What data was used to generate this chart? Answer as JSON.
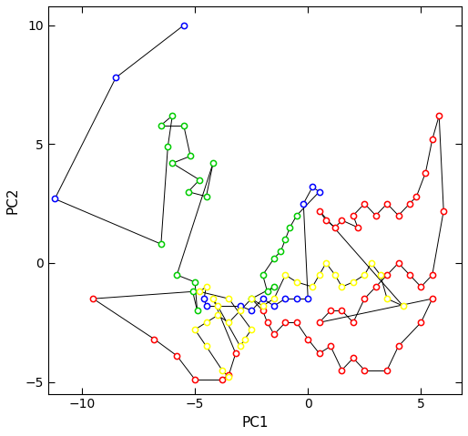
{
  "xlabel": "PC1",
  "ylabel": "PC2",
  "xlim": [
    -11.5,
    6.8
  ],
  "ylim": [
    -5.5,
    10.8
  ],
  "xticks": [
    -10,
    -5,
    0,
    5
  ],
  "yticks": [
    -5,
    0,
    5,
    10
  ],
  "color_map": {
    "red": "#FF0000",
    "green": "#00CC00",
    "blue": "#0000FF",
    "yellow": "#FFFF00"
  },
  "pts": [
    [
      -5.5,
      10.0,
      "blue"
    ],
    [
      -8.5,
      7.8,
      "blue"
    ],
    [
      -11.2,
      2.7,
      "blue"
    ],
    [
      -6.5,
      0.8,
      "green"
    ],
    [
      -6.2,
      4.9,
      "green"
    ],
    [
      -6.0,
      6.2,
      "green"
    ],
    [
      -6.5,
      5.8,
      "green"
    ],
    [
      -5.5,
      5.8,
      "green"
    ],
    [
      -5.2,
      4.5,
      "green"
    ],
    [
      -6.0,
      4.2,
      "green"
    ],
    [
      -4.8,
      3.5,
      "green"
    ],
    [
      -5.3,
      3.0,
      "green"
    ],
    [
      -4.5,
      2.8,
      "green"
    ],
    [
      -4.2,
      4.2,
      "green"
    ],
    [
      -5.8,
      -0.5,
      "green"
    ],
    [
      -5.0,
      -0.8,
      "green"
    ],
    [
      -4.9,
      -2.0,
      "green"
    ],
    [
      -5.1,
      -1.2,
      "green"
    ],
    [
      -9.5,
      -1.5,
      "red"
    ],
    [
      -6.8,
      -3.2,
      "red"
    ],
    [
      -5.8,
      -3.9,
      "red"
    ],
    [
      -5.0,
      -4.9,
      "red"
    ],
    [
      -3.8,
      -4.9,
      "red"
    ],
    [
      -3.5,
      -4.7,
      "red"
    ],
    [
      -3.2,
      -3.8,
      "red"
    ],
    [
      -4.2,
      -1.5,
      "yellow"
    ],
    [
      -4.0,
      -1.8,
      "yellow"
    ],
    [
      -3.0,
      -3.5,
      "yellow"
    ],
    [
      -2.8,
      -3.2,
      "yellow"
    ],
    [
      -2.5,
      -2.8,
      "yellow"
    ],
    [
      -3.5,
      -1.5,
      "yellow"
    ],
    [
      -4.8,
      -1.2,
      "yellow"
    ],
    [
      -4.5,
      -1.0,
      "yellow"
    ],
    [
      -4.6,
      -1.5,
      "blue"
    ],
    [
      -4.5,
      -1.8,
      "blue"
    ],
    [
      -3.0,
      -1.8,
      "blue"
    ],
    [
      -2.5,
      -2.0,
      "blue"
    ],
    [
      -2.0,
      -1.5,
      "blue"
    ],
    [
      -1.5,
      -1.8,
      "blue"
    ],
    [
      -1.0,
      -1.5,
      "blue"
    ],
    [
      -0.5,
      -1.5,
      "blue"
    ],
    [
      0.0,
      -1.5,
      "blue"
    ],
    [
      -0.2,
      2.5,
      "blue"
    ],
    [
      0.2,
      3.2,
      "blue"
    ],
    [
      0.5,
      3.0,
      "blue"
    ],
    [
      -0.5,
      2.0,
      "green"
    ],
    [
      -0.8,
      1.5,
      "green"
    ],
    [
      -1.0,
      1.0,
      "green"
    ],
    [
      -1.2,
      0.5,
      "green"
    ],
    [
      -1.5,
      0.2,
      "green"
    ],
    [
      -2.0,
      -0.5,
      "green"
    ],
    [
      -1.8,
      -1.2,
      "green"
    ],
    [
      -1.5,
      -1.0,
      "green"
    ],
    [
      -2.5,
      -1.5,
      "green"
    ],
    [
      -2.0,
      -2.0,
      "red"
    ],
    [
      -1.8,
      -2.5,
      "red"
    ],
    [
      -1.5,
      -3.0,
      "red"
    ],
    [
      -1.0,
      -2.5,
      "red"
    ],
    [
      -0.5,
      -2.5,
      "red"
    ],
    [
      0.0,
      -3.2,
      "red"
    ],
    [
      0.5,
      -3.8,
      "red"
    ],
    [
      1.0,
      -3.5,
      "red"
    ],
    [
      1.5,
      -4.5,
      "red"
    ],
    [
      2.0,
      -4.0,
      "red"
    ],
    [
      2.5,
      -4.5,
      "red"
    ],
    [
      3.5,
      -4.5,
      "red"
    ],
    [
      4.0,
      -3.5,
      "red"
    ],
    [
      5.0,
      -2.5,
      "red"
    ],
    [
      5.5,
      -1.5,
      "red"
    ],
    [
      0.5,
      -2.5,
      "red"
    ],
    [
      1.0,
      -2.0,
      "red"
    ],
    [
      1.5,
      -2.0,
      "red"
    ],
    [
      2.0,
      -2.5,
      "red"
    ],
    [
      2.5,
      -1.5,
      "red"
    ],
    [
      3.0,
      -1.0,
      "red"
    ],
    [
      3.5,
      -0.5,
      "red"
    ],
    [
      4.0,
      0.0,
      "red"
    ],
    [
      4.5,
      -0.5,
      "red"
    ],
    [
      5.0,
      -1.0,
      "red"
    ],
    [
      5.5,
      -0.5,
      "red"
    ],
    [
      6.0,
      2.2,
      "red"
    ],
    [
      5.8,
      6.2,
      "red"
    ],
    [
      5.5,
      5.2,
      "red"
    ],
    [
      5.2,
      3.8,
      "red"
    ],
    [
      4.8,
      2.8,
      "red"
    ],
    [
      4.5,
      2.5,
      "red"
    ],
    [
      4.0,
      2.0,
      "red"
    ],
    [
      3.5,
      2.5,
      "red"
    ],
    [
      3.0,
      2.0,
      "red"
    ],
    [
      2.5,
      2.5,
      "red"
    ],
    [
      2.0,
      2.0,
      "red"
    ],
    [
      2.2,
      1.5,
      "red"
    ],
    [
      1.5,
      1.8,
      "red"
    ],
    [
      1.2,
      1.5,
      "red"
    ],
    [
      0.8,
      1.8,
      "red"
    ],
    [
      0.5,
      2.2,
      "red"
    ],
    [
      4.2,
      -1.8,
      "yellow"
    ],
    [
      3.5,
      -1.5,
      "yellow"
    ],
    [
      3.2,
      -0.5,
      "yellow"
    ],
    [
      2.8,
      0.0,
      "yellow"
    ],
    [
      2.5,
      -0.5,
      "yellow"
    ],
    [
      2.0,
      -0.8,
      "yellow"
    ],
    [
      1.5,
      -1.0,
      "yellow"
    ],
    [
      1.2,
      -0.5,
      "yellow"
    ],
    [
      0.8,
      0.0,
      "yellow"
    ],
    [
      0.5,
      -0.5,
      "yellow"
    ],
    [
      0.2,
      -1.0,
      "yellow"
    ],
    [
      -0.5,
      -0.8,
      "yellow"
    ],
    [
      -1.0,
      -0.5,
      "yellow"
    ],
    [
      -1.5,
      -1.5,
      "yellow"
    ],
    [
      -2.0,
      -1.8,
      "yellow"
    ],
    [
      -2.5,
      -1.5,
      "yellow"
    ],
    [
      -3.0,
      -2.0,
      "yellow"
    ],
    [
      -3.5,
      -2.5,
      "yellow"
    ],
    [
      -4.0,
      -2.2,
      "yellow"
    ],
    [
      -4.5,
      -2.5,
      "yellow"
    ],
    [
      -5.0,
      -2.8,
      "yellow"
    ],
    [
      -4.5,
      -3.5,
      "yellow"
    ],
    [
      -3.8,
      -4.5,
      "yellow"
    ],
    [
      -3.5,
      -4.8,
      "yellow"
    ]
  ]
}
